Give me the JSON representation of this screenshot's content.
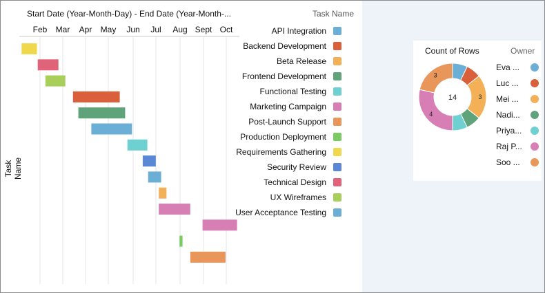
{
  "gantt": {
    "title": "Start Date (Year-Month-Day) - End Date (Year-Month-...",
    "y_axis_title": "Task Name",
    "months": [
      "Feb",
      "Mar",
      "Apr",
      "May",
      "Jun",
      "Jul",
      "Aug",
      "Sept",
      "Oct"
    ]
  },
  "legend": {
    "title": "Task Name",
    "items": [
      {
        "label": "API Integration",
        "color": "#6baed6"
      },
      {
        "label": "Backend Development",
        "color": "#d9603b"
      },
      {
        "label": "Beta Release",
        "color": "#f4b057"
      },
      {
        "label": "Frontend Development",
        "color": "#5fa37a"
      },
      {
        "label": "Functional Testing",
        "color": "#6ed0d0"
      },
      {
        "label": "Marketing Campaign",
        "color": "#d77fb4"
      },
      {
        "label": "Post-Launch Support",
        "color": "#e8965a"
      },
      {
        "label": "Production Deployment",
        "color": "#7bcb63"
      },
      {
        "label": "Requirements Gathering",
        "color": "#f0d84c"
      },
      {
        "label": "Security Review",
        "color": "#5b88d6"
      },
      {
        "label": "Technical Design",
        "color": "#e0637a"
      },
      {
        "label": "UX Wireframes",
        "color": "#a7cf5a"
      },
      {
        "label": "User Acceptance Testing",
        "color": "#6baed6"
      }
    ]
  },
  "donut": {
    "title": "Count of Rows",
    "owner_title": "Owner",
    "center_label": "14"
  },
  "chart_data": [
    {
      "type": "gantt",
      "title": "Start Date (Year-Month-Day) - End Date (Year-Month-...",
      "ylabel": "Task Name",
      "x_ticks": [
        "Feb",
        "Mar",
        "Apr",
        "May",
        "Jun",
        "Jul",
        "Aug",
        "Sept",
        "Oct"
      ],
      "tasks": [
        {
          "task": "Requirements Gathering",
          "start": "2024-01-08",
          "end": "2024-01-28",
          "color": "#f0d84c"
        },
        {
          "task": "Technical Design",
          "start": "2024-01-29",
          "end": "2024-02-25",
          "color": "#e0637a"
        },
        {
          "task": "UX Wireframes",
          "start": "2024-02-08",
          "end": "2024-03-05",
          "color": "#a7cf5a"
        },
        {
          "task": "Backend Development",
          "start": "2024-03-15",
          "end": "2024-05-15",
          "color": "#d9603b"
        },
        {
          "task": "Frontend Development",
          "start": "2024-03-22",
          "end": "2024-05-22",
          "color": "#5fa37a"
        },
        {
          "task": "API Integration",
          "start": "2024-04-08",
          "end": "2024-05-31",
          "color": "#6baed6"
        },
        {
          "task": "Functional Testing",
          "start": "2024-05-25",
          "end": "2024-06-20",
          "color": "#6ed0d0"
        },
        {
          "task": "Security Review",
          "start": "2024-06-14",
          "end": "2024-07-01",
          "color": "#5b88d6"
        },
        {
          "task": "User Acceptance Testing",
          "start": "2024-06-21",
          "end": "2024-07-08",
          "color": "#6baed6"
        },
        {
          "task": "Beta Release",
          "start": "2024-07-05",
          "end": "2024-07-15",
          "color": "#f4b057"
        },
        {
          "task": "Marketing Campaign",
          "start": "2024-07-05",
          "end": "2024-08-15",
          "color": "#d77fb4"
        },
        {
          "task": "Post-Launch Support",
          "start": "2024-08-31",
          "end": "2024-10-15",
          "color": "#d77fb4"
        },
        {
          "task": "Production Deployment",
          "start": "2024-08-01",
          "end": "2024-08-05",
          "color": "#7bcb63"
        },
        {
          "task": "Post-Launch Support",
          "start": "2024-08-15",
          "end": "2024-09-30",
          "color": "#e8965a"
        }
      ]
    },
    {
      "type": "pie",
      "title": "Count of Rows",
      "center_label": "14",
      "legend_title": "Owner",
      "slices": [
        {
          "label": "Eva ...",
          "value": 1,
          "color": "#6baed6"
        },
        {
          "label": "Luc ...",
          "value": 1,
          "color": "#d9603b"
        },
        {
          "label": "Mei ...",
          "value": 3,
          "color": "#f4b057",
          "data_label": "3"
        },
        {
          "label": "Nadi...",
          "value": 1,
          "color": "#5fa37a"
        },
        {
          "label": "Priya...",
          "value": 1,
          "color": "#6ed0d0"
        },
        {
          "label": "Raj P...",
          "value": 4,
          "color": "#d77fb4",
          "data_label": "4"
        },
        {
          "label": "Soo ...",
          "value": 3,
          "color": "#e8965a",
          "data_label": "3"
        }
      ]
    }
  ]
}
